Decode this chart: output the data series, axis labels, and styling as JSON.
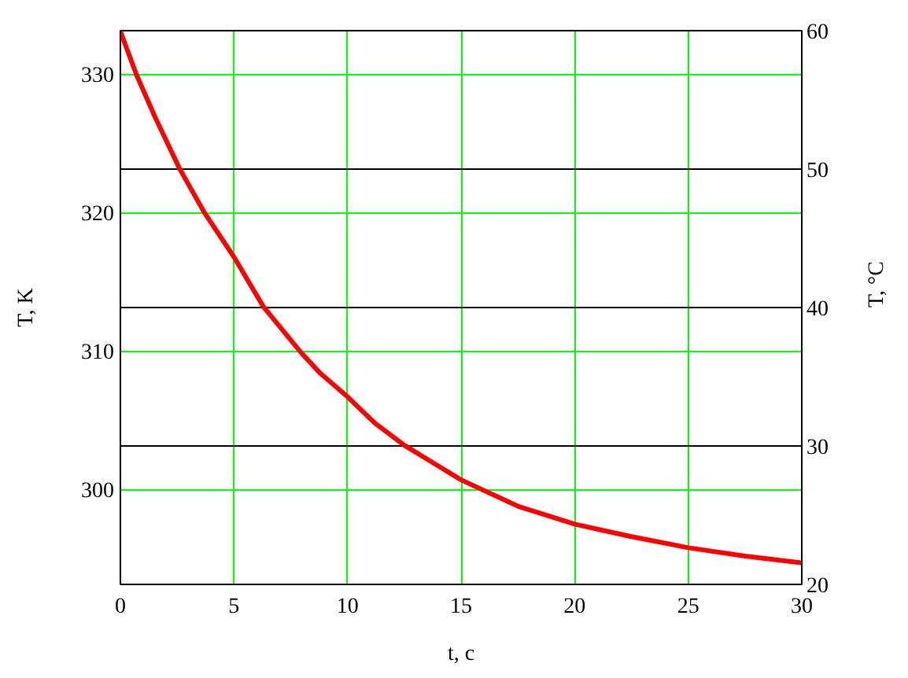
{
  "chart_data": {
    "type": "line",
    "x": [
      0,
      0.7,
      1.5,
      2.6,
      3.7,
      5,
      6.3,
      7.9,
      8.8,
      10,
      11.2,
      12.5,
      13.8,
      15,
      17.5,
      20,
      22.5,
      25,
      27.5,
      30
    ],
    "values": [
      333.1,
      330,
      327.0,
      323.2,
      320,
      316.8,
      313.2,
      310,
      308.4,
      306.7,
      304.8,
      303.2,
      301.9,
      300.7,
      298.8,
      297.5,
      296.6,
      295.8,
      295.2,
      294.7
    ],
    "color": "#ff0000",
    "xlabel": "t, c",
    "ylabel": "T, K",
    "y2label": "T, °C",
    "xlim": [
      0,
      30
    ],
    "xticks": [
      0,
      5,
      10,
      15,
      20,
      25,
      30
    ],
    "ylim": [
      293.15,
      333.15
    ],
    "yticks": [
      300,
      310,
      320,
      330
    ],
    "y2lim": [
      20,
      60
    ],
    "y2ticks": [
      20,
      30,
      40,
      50,
      60
    ],
    "grid": true
  }
}
